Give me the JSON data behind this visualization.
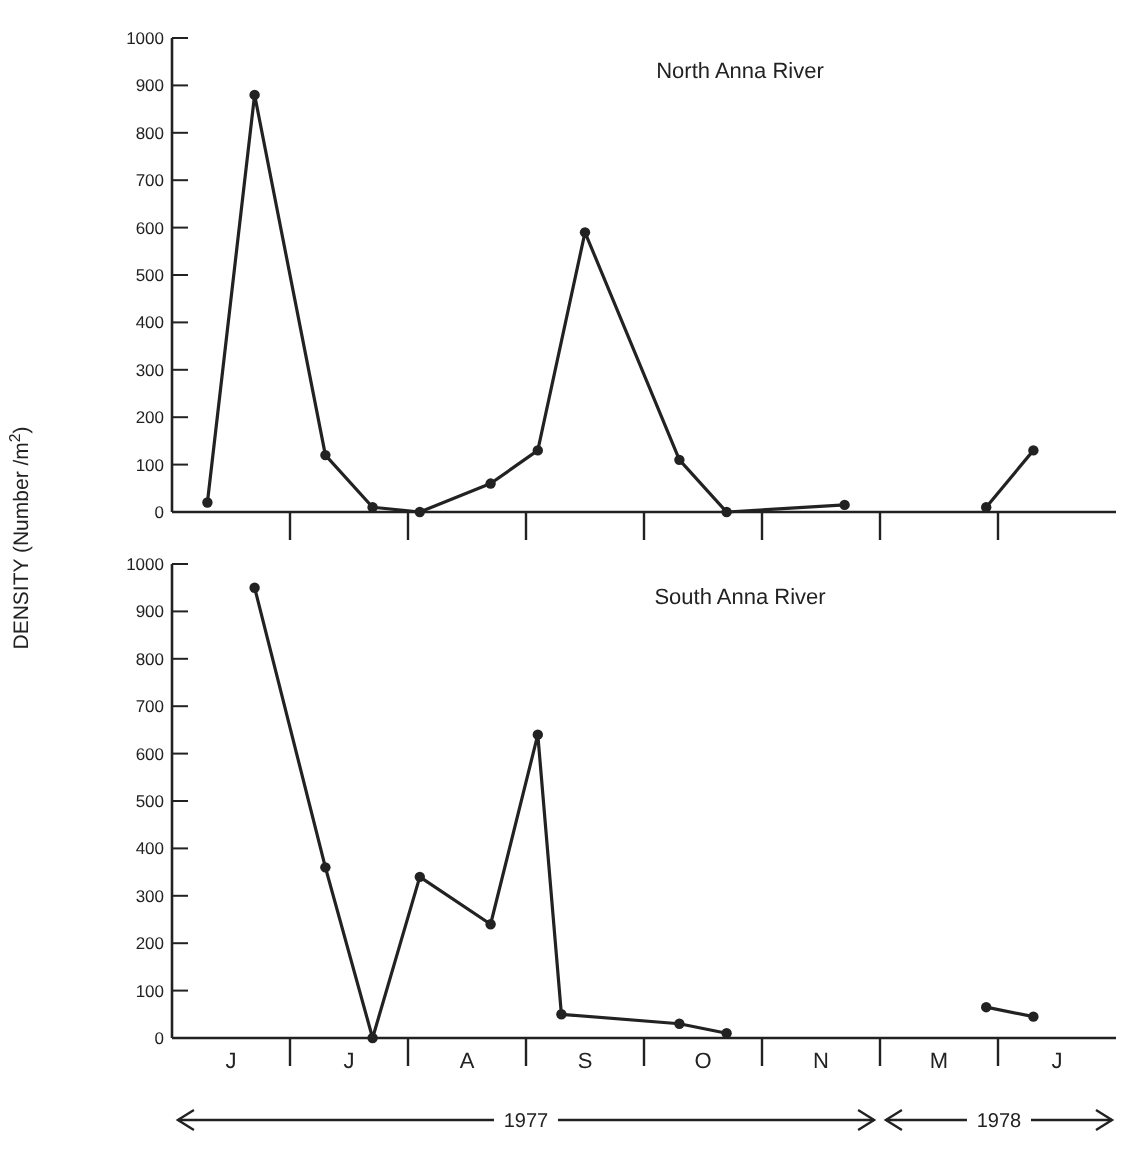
{
  "chart_data": [
    {
      "type": "line",
      "title": "North Anna River",
      "ylabel": "DENSITY (Number /m$^{2}$)",
      "categories": [
        null,
        null,
        null,
        null,
        null,
        null,
        null,
        null,
        null,
        null,
        null,
        null,
        null,
        null,
        null,
        null,
        null,
        null,
        null,
        null,
        null,
        null,
        null,
        null,
        null,
        null,
        null,
        null,
        null,
        null,
        null,
        null,
        null,
        null,
        null,
        null,
        null,
        null,
        null,
        null
      ],
      "ylim": [
        0,
        1000
      ],
      "yticks": [
        0,
        100,
        200,
        300,
        400,
        500,
        600,
        700,
        800,
        900,
        1000
      ],
      "tick_labels": "y",
      "marker": "circle",
      "line_style": "solid",
      "series": [
        {
          "color": "#222222",
          "values": [
            null,
            20,
            null,
            880,
            null,
            null,
            120,
            null,
            10,
            null,
            0,
            null,
            null,
            60,
            null,
            130,
            null,
            590,
            null,
            null,
            null,
            110,
            null,
            0,
            null,
            null,
            null,
            null,
            15,
            null,
            null,
            null,
            null,
            null,
            null,
            null,
            null,
            null,
            null,
            null
          ]
        },
        {
          "color": "#222222",
          "values": [
            null,
            null,
            null,
            null,
            null,
            null,
            null,
            null,
            null,
            null,
            null,
            null,
            null,
            null,
            null,
            null,
            null,
            null,
            null,
            null,
            null,
            null,
            null,
            null,
            null,
            null,
            null,
            null,
            null,
            null,
            null,
            null,
            null,
            null,
            10,
            null,
            130,
            null,
            null,
            null
          ]
        }
      ]
    },
    {
      "type": "line",
      "title": "South Anna River",
      "categories": [
        null,
        null,
        "J",
        null,
        null,
        null,
        null,
        "J",
        null,
        null,
        null,
        null,
        "A",
        null,
        null,
        null,
        null,
        "S",
        null,
        null,
        null,
        null,
        "O",
        null,
        null,
        null,
        null,
        "N",
        null,
        null,
        null,
        null,
        "M",
        null,
        null,
        null,
        null,
        "J",
        null,
        null
      ],
      "ylim": [
        0,
        1000
      ],
      "yticks": [
        0,
        100,
        200,
        300,
        400,
        500,
        600,
        700,
        800,
        900,
        1000
      ],
      "marker": "circle",
      "line_style": "solid",
      "annotations": [
        "1977",
        "1978"
      ],
      "series": [
        {
          "color": "#222222",
          "values": [
            null,
            null,
            null,
            950,
            null,
            null,
            360,
            null,
            0,
            null,
            340,
            null,
            null,
            240,
            null,
            640,
            50,
            null,
            null,
            null,
            null,
            30,
            null,
            10,
            null,
            null,
            null,
            null,
            null,
            null,
            null,
            null,
            null,
            null,
            null,
            null,
            null,
            null,
            null,
            null
          ]
        },
        {
          "color": "#222222",
          "values": [
            null,
            null,
            null,
            null,
            null,
            null,
            null,
            null,
            null,
            null,
            null,
            null,
            null,
            null,
            null,
            null,
            null,
            null,
            null,
            null,
            null,
            null,
            null,
            null,
            null,
            null,
            null,
            null,
            null,
            null,
            null,
            null,
            null,
            null,
            65,
            null,
            45,
            null,
            null,
            null
          ]
        }
      ]
    }
  ]
}
